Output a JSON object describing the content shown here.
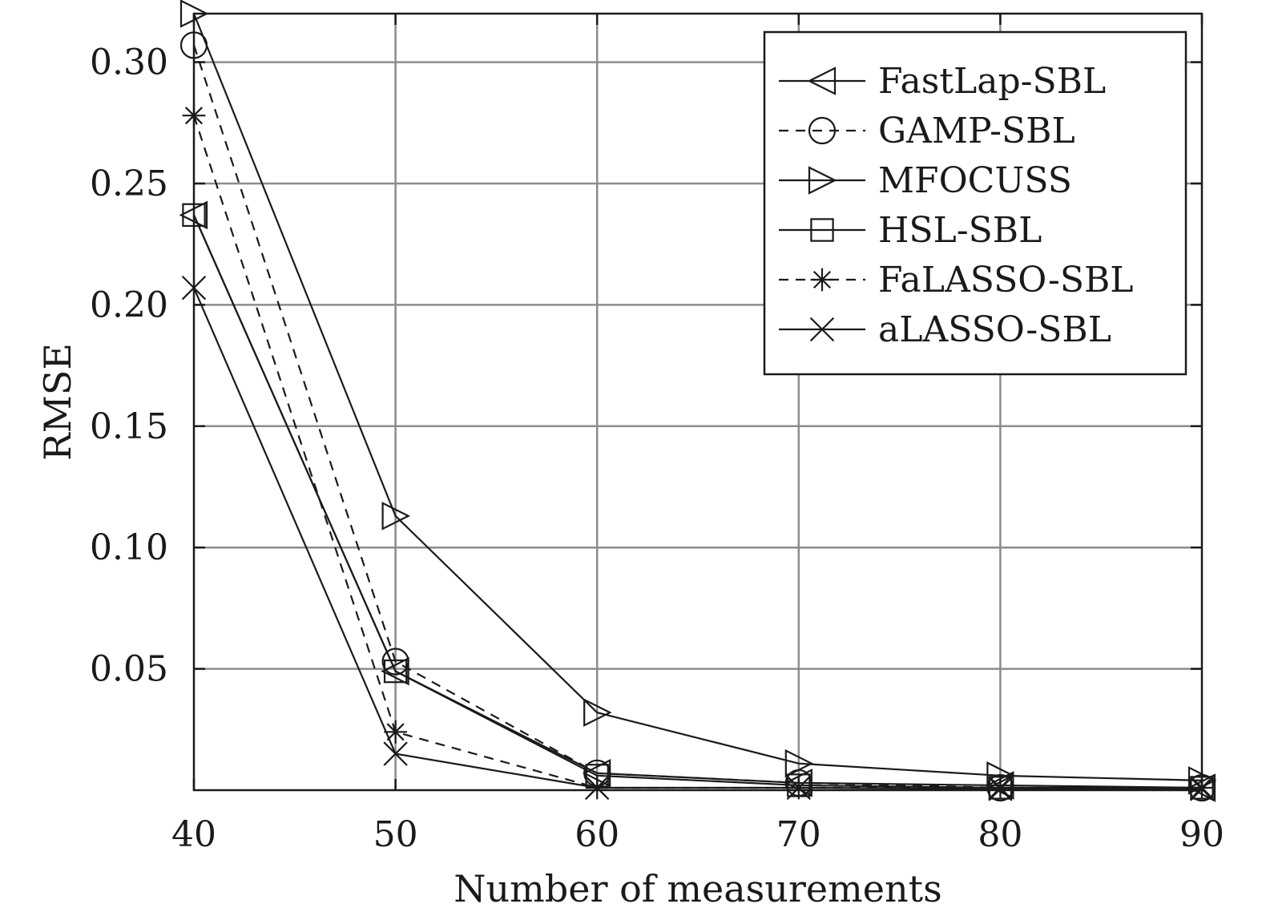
{
  "chart_data": {
    "type": "line",
    "xlabel": "Number of measurements",
    "ylabel": "RMSE",
    "x": [
      40,
      50,
      60,
      70,
      80,
      90
    ],
    "xlim": [
      40,
      90
    ],
    "ylim": [
      0,
      0.32
    ],
    "xticks": [
      "40",
      "50",
      "60",
      "70",
      "80",
      "90"
    ],
    "yticks": [
      "0.05",
      "0.10",
      "0.15",
      "0.20",
      "0.25",
      "0.30"
    ],
    "ytick_values": [
      0.05,
      0.1,
      0.15,
      0.2,
      0.25,
      0.3
    ],
    "grid": true,
    "legend_position": "top-right",
    "series": [
      {
        "name": "FastLap-SBL",
        "marker": "triangle-left",
        "dash": "solid",
        "values": [
          0.237,
          0.049,
          0.007,
          0.003,
          0.002,
          0.001
        ]
      },
      {
        "name": "GAMP-SBL",
        "marker": "circle",
        "dash": "dashed",
        "values": [
          0.307,
          0.053,
          0.007,
          0.003,
          0.001,
          0.001
        ]
      },
      {
        "name": "MFOCUSS",
        "marker": "triangle-right",
        "dash": "solid",
        "values": [
          0.32,
          0.113,
          0.032,
          0.011,
          0.006,
          0.004
        ]
      },
      {
        "name": "HSL-SBL",
        "marker": "square",
        "dash": "solid",
        "values": [
          0.237,
          0.049,
          0.006,
          0.002,
          0.001,
          0.001
        ]
      },
      {
        "name": "FaLASSO-SBL",
        "marker": "asterisk",
        "dash": "dashed",
        "values": [
          0.278,
          0.024,
          0.001,
          0.001,
          0.001,
          0.001
        ]
      },
      {
        "name": "aLASSO-SBL",
        "marker": "x",
        "dash": "solid",
        "values": [
          0.207,
          0.015,
          0.001,
          0.001,
          0.0005,
          0.0005
        ]
      }
    ]
  }
}
